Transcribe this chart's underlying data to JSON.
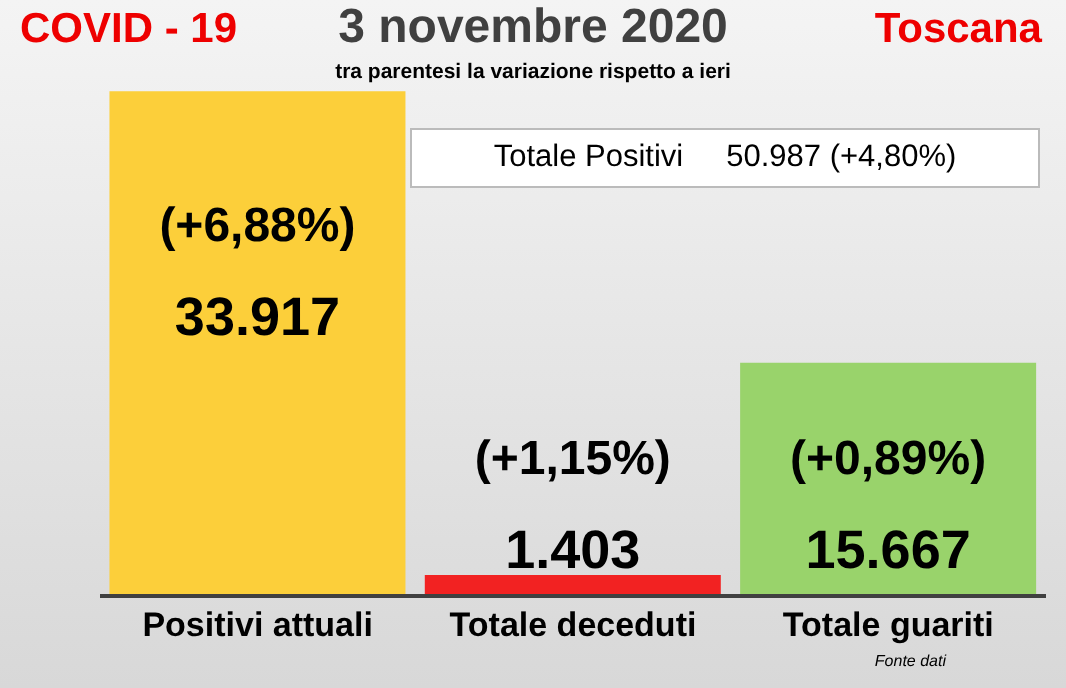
{
  "chart_data": {
    "type": "bar",
    "title": "3 novembre 2020",
    "subtitle": "tra parentesi la variazione rispetto a ieri",
    "categories": [
      "Positivi attuali",
      "Totale deceduti",
      "Totale guariti"
    ],
    "values": [
      33917,
      1403,
      15667
    ],
    "colors": [
      "#fccf3a",
      "#f22222",
      "#99d36b"
    ],
    "value_labels": [
      "33.917",
      "1.403",
      "15.667"
    ],
    "legend": false,
    "annotations": [
      "(+6,88%)",
      "(+1,15%)",
      "(+0,89%)",
      "COVID - 19",
      "Toscana",
      "Totale Positivi     50.987 (+4,80%)",
      "Fonte dati"
    ]
  }
}
